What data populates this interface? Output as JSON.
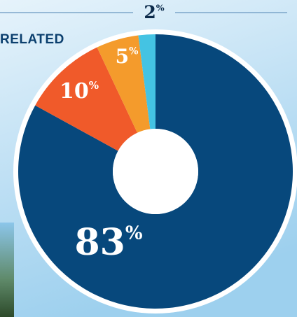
{
  "chart_data": {
    "type": "donut",
    "annotation": "RELATED",
    "categories": [
      null,
      null,
      null,
      null
    ],
    "values": [
      83,
      10,
      5,
      2
    ],
    "value_labels": [
      "83%",
      "10%",
      "5%",
      "2%"
    ],
    "colors": [
      "#07487c",
      "#f05a2a",
      "#f49b2c",
      "#44c3e3"
    ]
  }
}
